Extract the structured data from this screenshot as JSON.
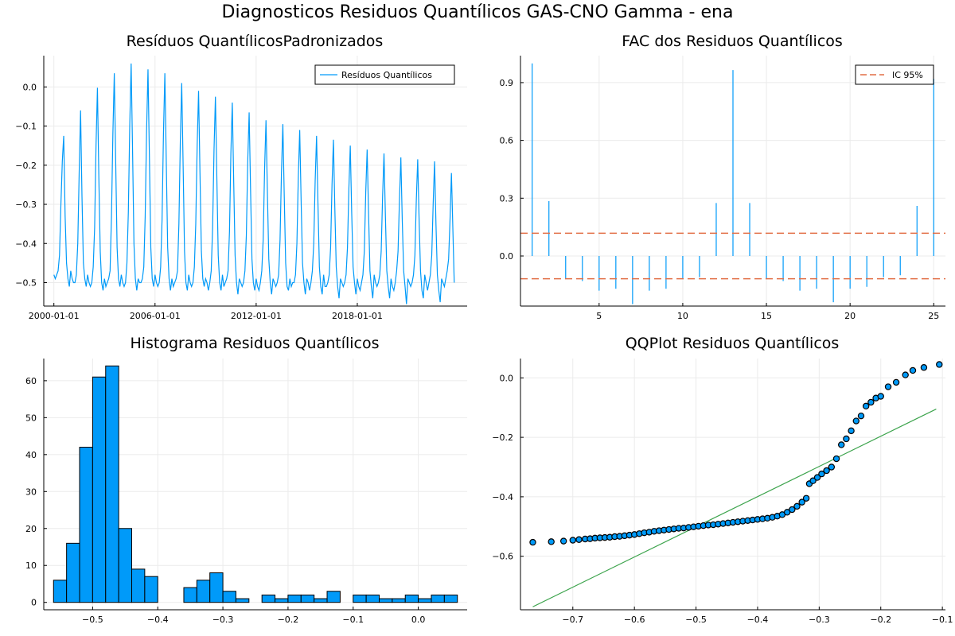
{
  "figure": {
    "title": "Diagnosticos Residuos  Quantílicos GAS-CNO Gamma - ena",
    "colors": {
      "main": "#009af9",
      "ic": "#e26f46",
      "qqline": "#3da44d",
      "grid": "#ebebeb"
    }
  },
  "chart_data": [
    {
      "type": "line",
      "title": "Resíduos  QuantílicosPadronizados",
      "xlabel": "",
      "ylabel": "",
      "x_ticks": [
        "2000-01-01",
        "2006-01-01",
        "2012-01-01",
        "2018-01-01"
      ],
      "x_range": [
        "2000-01-01",
        "2023-12-01"
      ],
      "y_ticks": [
        "0.0",
        "−0.1",
        "−0.2",
        "−0.3",
        "−0.4",
        "−0.5"
      ],
      "ylim": [
        -0.56,
        0.08
      ],
      "legend": {
        "position": "top-right",
        "entries": [
          "Resíduos Quantílicos"
        ]
      },
      "series": [
        {
          "name": "Resíduos Quantílicos",
          "start": "2000-01-01",
          "frequency": "monthly",
          "annual_peaks": [
            -0.125,
            -0.06,
            -0.002,
            0.035,
            0.06,
            0.045,
            0.035,
            0.01,
            -0.01,
            -0.025,
            -0.04,
            -0.065,
            -0.085,
            -0.095,
            -0.11,
            -0.125,
            -0.135,
            -0.15,
            -0.16,
            -0.17,
            -0.18,
            -0.185,
            -0.19,
            -0.22
          ],
          "typical_trough": -0.5,
          "minimum": -0.555,
          "values": [
            -0.48,
            -0.49,
            -0.48,
            -0.47,
            -0.43,
            -0.3,
            -0.19,
            -0.125,
            -0.33,
            -0.45,
            -0.49,
            -0.51,
            -0.47,
            -0.49,
            -0.5,
            -0.5,
            -0.48,
            -0.4,
            -0.22,
            -0.06,
            -0.28,
            -0.45,
            -0.49,
            -0.51,
            -0.48,
            -0.5,
            -0.51,
            -0.5,
            -0.46,
            -0.36,
            -0.15,
            -0.002,
            -0.23,
            -0.42,
            -0.5,
            -0.52,
            -0.49,
            -0.51,
            -0.5,
            -0.49,
            -0.47,
            -0.33,
            -0.12,
            0.035,
            -0.19,
            -0.41,
            -0.49,
            -0.51,
            -0.48,
            -0.5,
            -0.51,
            -0.5,
            -0.45,
            -0.32,
            -0.1,
            0.06,
            -0.16,
            -0.4,
            -0.49,
            -0.52,
            -0.49,
            -0.5,
            -0.5,
            -0.49,
            -0.46,
            -0.33,
            -0.11,
            0.045,
            -0.18,
            -0.41,
            -0.49,
            -0.51,
            -0.48,
            -0.5,
            -0.51,
            -0.5,
            -0.46,
            -0.34,
            -0.12,
            0.035,
            -0.19,
            -0.41,
            -0.49,
            -0.52,
            -0.49,
            -0.51,
            -0.5,
            -0.49,
            -0.47,
            -0.35,
            -0.14,
            0.01,
            -0.2,
            -0.42,
            -0.5,
            -0.52,
            -0.48,
            -0.5,
            -0.51,
            -0.5,
            -0.46,
            -0.35,
            -0.15,
            -0.01,
            -0.22,
            -0.42,
            -0.49,
            -0.51,
            -0.49,
            -0.5,
            -0.52,
            -0.5,
            -0.47,
            -0.36,
            -0.16,
            -0.025,
            -0.23,
            -0.43,
            -0.5,
            -0.52,
            -0.48,
            -0.51,
            -0.5,
            -0.49,
            -0.47,
            -0.37,
            -0.17,
            -0.04,
            -0.24,
            -0.43,
            -0.5,
            -0.53,
            -0.49,
            -0.5,
            -0.51,
            -0.5,
            -0.47,
            -0.38,
            -0.19,
            -0.065,
            -0.26,
            -0.44,
            -0.5,
            -0.52,
            -0.49,
            -0.51,
            -0.52,
            -0.5,
            -0.47,
            -0.39,
            -0.21,
            -0.085,
            -0.27,
            -0.44,
            -0.5,
            -0.53,
            -0.49,
            -0.5,
            -0.51,
            -0.5,
            -0.48,
            -0.39,
            -0.22,
            -0.095,
            -0.28,
            -0.45,
            -0.51,
            -0.52,
            -0.49,
            -0.51,
            -0.5,
            -0.5,
            -0.48,
            -0.4,
            -0.23,
            -0.11,
            -0.29,
            -0.45,
            -0.5,
            -0.53,
            -0.49,
            -0.5,
            -0.52,
            -0.5,
            -0.47,
            -0.4,
            -0.24,
            -0.125,
            -0.3,
            -0.46,
            -0.51,
            -0.53,
            -0.48,
            -0.51,
            -0.51,
            -0.5,
            -0.48,
            -0.41,
            -0.25,
            -0.135,
            -0.31,
            -0.46,
            -0.51,
            -0.54,
            -0.49,
            -0.5,
            -0.51,
            -0.5,
            -0.48,
            -0.41,
            -0.26,
            -0.15,
            -0.32,
            -0.46,
            -0.5,
            -0.53,
            -0.49,
            -0.51,
            -0.52,
            -0.5,
            -0.48,
            -0.42,
            -0.27,
            -0.16,
            -0.32,
            -0.47,
            -0.51,
            -0.54,
            -0.48,
            -0.5,
            -0.51,
            -0.5,
            -0.48,
            -0.42,
            -0.28,
            -0.17,
            -0.33,
            -0.47,
            -0.51,
            -0.54,
            -0.49,
            -0.51,
            -0.52,
            -0.5,
            -0.47,
            -0.42,
            -0.29,
            -0.18,
            -0.34,
            -0.47,
            -0.51,
            -0.555,
            -0.49,
            -0.5,
            -0.51,
            -0.5,
            -0.48,
            -0.43,
            -0.29,
            -0.185,
            -0.34,
            -0.47,
            -0.52,
            -0.54,
            -0.48,
            -0.5,
            -0.52,
            -0.5,
            -0.48,
            -0.43,
            -0.3,
            -0.19,
            -0.35,
            -0.48,
            -0.52,
            -0.55,
            -0.49,
            -0.5,
            -0.51,
            -0.49,
            -0.47,
            -0.44,
            -0.34,
            -0.22,
            -0.36,
            -0.5
          ]
        }
      ]
    },
    {
      "type": "bar",
      "title": "FAC dos Residuos Quantílicos",
      "xlabel": "",
      "ylabel": "",
      "x_ticks": [
        "5",
        "10",
        "15",
        "20",
        "25"
      ],
      "x_range": [
        0.3,
        25.7
      ],
      "y_ticks": [
        "0.9",
        "0.6",
        "0.3",
        "0.0"
      ],
      "ylim": [
        -0.26,
        1.04
      ],
      "legend": {
        "position": "top-right",
        "entries": [
          "IC 95%"
        ]
      },
      "categories": [
        1,
        2,
        3,
        4,
        5,
        6,
        7,
        8,
        9,
        10,
        11,
        12,
        13,
        14,
        15,
        16,
        17,
        18,
        19,
        20,
        21,
        22,
        23,
        24,
        25
      ],
      "values": [
        1.0,
        0.285,
        -0.12,
        -0.13,
        -0.18,
        -0.17,
        -0.25,
        -0.18,
        -0.17,
        -0.12,
        -0.11,
        0.275,
        0.965,
        0.275,
        -0.12,
        -0.13,
        -0.18,
        -0.17,
        -0.24,
        -0.17,
        -0.16,
        -0.11,
        -0.1,
        0.26,
        0.92
      ],
      "ic_band": [
        -0.118,
        0.118
      ],
      "ic_name": "IC 95%"
    },
    {
      "type": "bar",
      "subtype": "histogram",
      "title": "Histograma Residuos Quantílicos",
      "xlabel": "",
      "ylabel": "",
      "x_ticks": [
        "−0.5",
        "−0.4",
        "−0.3",
        "−0.2",
        "−0.1",
        "0.0"
      ],
      "x_range": [
        -0.575,
        0.075
      ],
      "y_ticks": [
        "0",
        "10",
        "20",
        "30",
        "40",
        "50",
        "60"
      ],
      "ylim": [
        -2,
        66
      ],
      "bin_start": -0.56,
      "bin_width": 0.02,
      "values": [
        6,
        16,
        42,
        61,
        64,
        20,
        9,
        7,
        0,
        0,
        4,
        6,
        8,
        3,
        1,
        0,
        2,
        1,
        2,
        2,
        1,
        3,
        0,
        2,
        2,
        1,
        1,
        2,
        1,
        2,
        2
      ]
    },
    {
      "type": "scatter",
      "title": "QQPlot Residuos Quantílicos",
      "xlabel": "",
      "ylabel": "",
      "x_ticks": [
        "−0.7",
        "−0.6",
        "−0.5",
        "−0.4",
        "−0.3",
        "−0.2",
        "−0.1"
      ],
      "x_range": [
        -0.785,
        -0.095
      ],
      "y_ticks": [
        "0.0",
        "−0.2",
        "−0.4",
        "−0.6"
      ],
      "ylim": [
        -0.78,
        0.065
      ],
      "reference_line": {
        "x": [
          -0.765,
          -0.11
        ],
        "y": [
          -0.77,
          -0.105
        ]
      },
      "points": [
        [
          -0.765,
          -0.553
        ],
        [
          -0.735,
          -0.551
        ],
        [
          -0.715,
          -0.549
        ],
        [
          -0.7,
          -0.546
        ],
        [
          -0.69,
          -0.544
        ],
        [
          -0.68,
          -0.542
        ],
        [
          -0.672,
          -0.541
        ],
        [
          -0.664,
          -0.539
        ],
        [
          -0.656,
          -0.538
        ],
        [
          -0.648,
          -0.537
        ],
        [
          -0.64,
          -0.536
        ],
        [
          -0.632,
          -0.534
        ],
        [
          -0.624,
          -0.533
        ],
        [
          -0.616,
          -0.531
        ],
        [
          -0.608,
          -0.529
        ],
        [
          -0.6,
          -0.527
        ],
        [
          -0.592,
          -0.524
        ],
        [
          -0.584,
          -0.521
        ],
        [
          -0.576,
          -0.519
        ],
        [
          -0.568,
          -0.516
        ],
        [
          -0.56,
          -0.514
        ],
        [
          -0.552,
          -0.512
        ],
        [
          -0.544,
          -0.51
        ],
        [
          -0.536,
          -0.508
        ],
        [
          -0.528,
          -0.506
        ],
        [
          -0.52,
          -0.505
        ],
        [
          -0.512,
          -0.503
        ],
        [
          -0.504,
          -0.501
        ],
        [
          -0.496,
          -0.499
        ],
        [
          -0.488,
          -0.497
        ],
        [
          -0.48,
          -0.495
        ],
        [
          -0.472,
          -0.494
        ],
        [
          -0.464,
          -0.492
        ],
        [
          -0.456,
          -0.49
        ],
        [
          -0.448,
          -0.488
        ],
        [
          -0.44,
          -0.486
        ],
        [
          -0.432,
          -0.484
        ],
        [
          -0.424,
          -0.482
        ],
        [
          -0.416,
          -0.48
        ],
        [
          -0.408,
          -0.478
        ],
        [
          -0.4,
          -0.476
        ],
        [
          -0.392,
          -0.474
        ],
        [
          -0.384,
          -0.472
        ],
        [
          -0.376,
          -0.469
        ],
        [
          -0.368,
          -0.465
        ],
        [
          -0.36,
          -0.46
        ],
        [
          -0.352,
          -0.452
        ],
        [
          -0.344,
          -0.443
        ],
        [
          -0.336,
          -0.432
        ],
        [
          -0.328,
          -0.418
        ],
        [
          -0.321,
          -0.405
        ],
        [
          -0.316,
          -0.356
        ],
        [
          -0.31,
          -0.346
        ],
        [
          -0.303,
          -0.335
        ],
        [
          -0.296,
          -0.323
        ],
        [
          -0.288,
          -0.312
        ],
        [
          -0.28,
          -0.3
        ],
        [
          -0.272,
          -0.272
        ],
        [
          -0.264,
          -0.225
        ],
        [
          -0.256,
          -0.205
        ],
        [
          -0.248,
          -0.178
        ],
        [
          -0.24,
          -0.145
        ],
        [
          -0.232,
          -0.128
        ],
        [
          -0.224,
          -0.095
        ],
        [
          -0.216,
          -0.082
        ],
        [
          -0.208,
          -0.068
        ],
        [
          -0.2,
          -0.062
        ],
        [
          -0.188,
          -0.03
        ],
        [
          -0.175,
          -0.015
        ],
        [
          -0.16,
          0.01
        ],
        [
          -0.148,
          0.025
        ],
        [
          -0.13,
          0.035
        ],
        [
          -0.105,
          0.045
        ]
      ]
    }
  ]
}
